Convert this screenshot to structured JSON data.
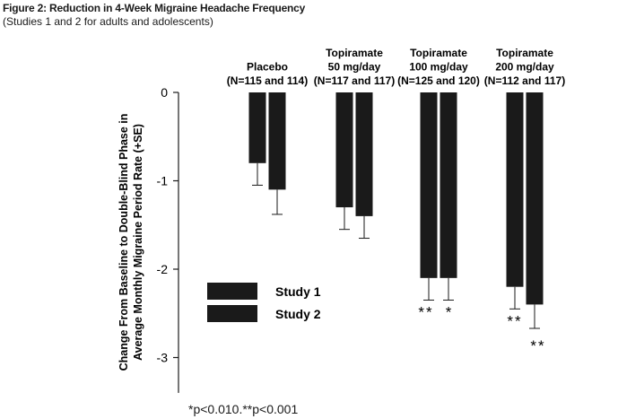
{
  "figure": {
    "title": "Figure 2: Reduction in 4-Week Migraine Headache Frequency",
    "subtitle": "(Studies 1 and 2 for adults and adolescents)",
    "footnote": "*p<0.010.**p<0.001"
  },
  "chart_data": {
    "type": "bar",
    "ylabel_line1": "Change From Baseline to Double-Blind Phase in",
    "ylabel_line2": "Average Monthly Migraine Period Rate (+SE)",
    "ylim": [
      -3.4,
      0
    ],
    "yticks": [
      0,
      -1,
      -2,
      -3
    ],
    "ytick_labels": [
      "0",
      "-1",
      "-2",
      "-3"
    ],
    "grid": false,
    "legend_position": "lower-left",
    "bar_color": "#1a1a1a",
    "categories": [
      {
        "line1": "Placebo",
        "line2": "(N=115 and 114)"
      },
      {
        "line1": "Topiramate",
        "line2": "50 mg/day",
        "line3": "(N=117 and 117)"
      },
      {
        "line1": "Topiramate",
        "line2": "100 mg/day",
        "line3": "(N=125 and 120)"
      },
      {
        "line1": "Topiramate",
        "line2": "200 mg/day",
        "line3": "(N=112 and 117)"
      }
    ],
    "series": [
      {
        "name": "Study 1",
        "values": [
          -0.8,
          -1.3,
          -2.1,
          -2.2
        ],
        "errors": [
          0.25,
          0.25,
          0.25,
          0.25
        ],
        "annotations": [
          "",
          "",
          "**",
          "**"
        ]
      },
      {
        "name": "Study 2",
        "values": [
          -1.1,
          -1.4,
          -2.1,
          -2.4
        ],
        "errors": [
          0.28,
          0.25,
          0.25,
          0.27
        ],
        "annotations": [
          "",
          "",
          "*",
          "**"
        ]
      }
    ]
  }
}
